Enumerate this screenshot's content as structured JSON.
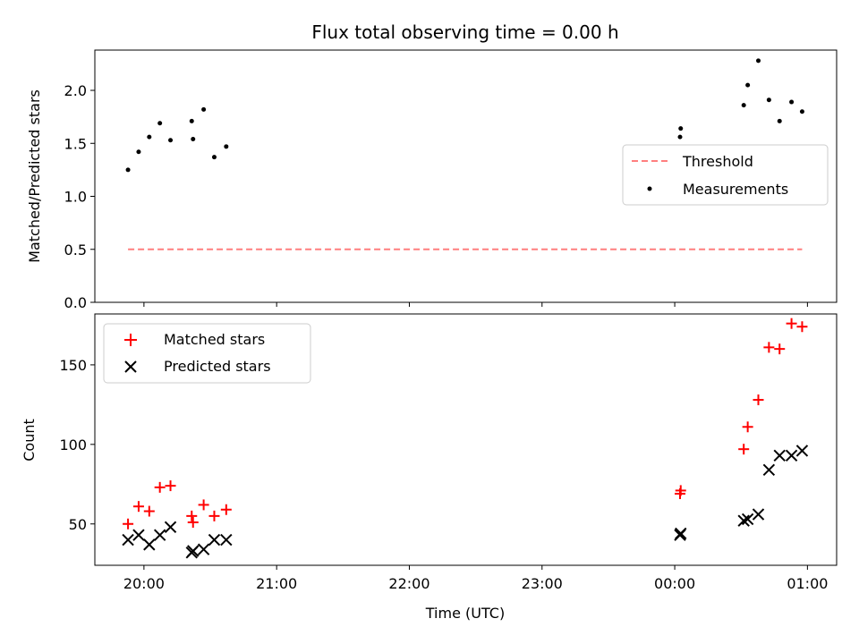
{
  "chart_data": [
    {
      "type": "scatter",
      "title": "Flux total observing time = 0.00 h",
      "ylabel": "Matched/Predicted stars",
      "xlabel": "",
      "ylim": [
        0,
        2.38
      ],
      "yticks": [
        0.0,
        0.5,
        1.0,
        1.5,
        2.0
      ],
      "ytick_labels": [
        "0.0",
        "0.5",
        "1.0",
        "1.5",
        "2.0"
      ],
      "legend_position": "center-right",
      "grid": false,
      "series": [
        {
          "name": "Measurements",
          "kind": "scatter",
          "marker": "dot",
          "color": "#000000",
          "x": [
            19.88,
            19.96,
            20.04,
            20.12,
            20.2,
            20.36,
            20.37,
            20.45,
            20.53,
            20.62,
            24.04,
            24.045,
            24.52,
            24.55,
            24.63,
            24.71,
            24.79,
            24.88,
            24.96
          ],
          "y": [
            1.25,
            1.42,
            1.56,
            1.69,
            1.53,
            1.71,
            1.54,
            1.82,
            1.37,
            1.47,
            1.56,
            1.64,
            1.86,
            2.05,
            2.28,
            1.91,
            1.71,
            1.89,
            1.8
          ]
        },
        {
          "name": "Threshold",
          "kind": "line",
          "style": "dashed",
          "color": "#ff7f7f",
          "x": [
            19.88,
            24.96
          ],
          "y": [
            0.5,
            0.5
          ]
        }
      ]
    },
    {
      "type": "scatter",
      "title": "",
      "ylabel": "Count",
      "xlabel": "Time (UTC)",
      "ylim": [
        24,
        182
      ],
      "yticks": [
        50,
        100,
        150
      ],
      "ytick_labels": [
        "50",
        "100",
        "150"
      ],
      "xticks": [
        20,
        21,
        22,
        23,
        24,
        25
      ],
      "xtick_labels": [
        "20:00",
        "21:00",
        "22:00",
        "23:00",
        "00:00",
        "01:00"
      ],
      "legend_position": "top-left",
      "grid": false,
      "series": [
        {
          "name": "Matched stars",
          "kind": "scatter",
          "marker": "plus",
          "color": "#ff0000",
          "x": [
            19.88,
            19.96,
            20.04,
            20.12,
            20.2,
            20.36,
            20.37,
            20.45,
            20.53,
            20.62,
            24.04,
            24.045,
            24.52,
            24.55,
            24.63,
            24.71,
            24.79,
            24.88,
            24.96
          ],
          "y": [
            50,
            61,
            58,
            73,
            74,
            55,
            51,
            62,
            55,
            59,
            69,
            71,
            97,
            111,
            128,
            161,
            160,
            176,
            174
          ]
        },
        {
          "name": "Predicted stars",
          "kind": "scatter",
          "marker": "x",
          "color": "#000000",
          "x": [
            19.88,
            19.96,
            20.04,
            20.12,
            20.2,
            20.36,
            20.37,
            20.45,
            20.53,
            20.62,
            24.04,
            24.045,
            24.52,
            24.55,
            24.63,
            24.71,
            24.79,
            24.88,
            24.96
          ],
          "y": [
            40,
            43,
            37,
            43,
            48,
            32,
            33,
            34,
            40,
            40,
            43,
            44,
            52,
            53,
            56,
            84,
            93,
            93,
            96
          ]
        }
      ]
    }
  ]
}
